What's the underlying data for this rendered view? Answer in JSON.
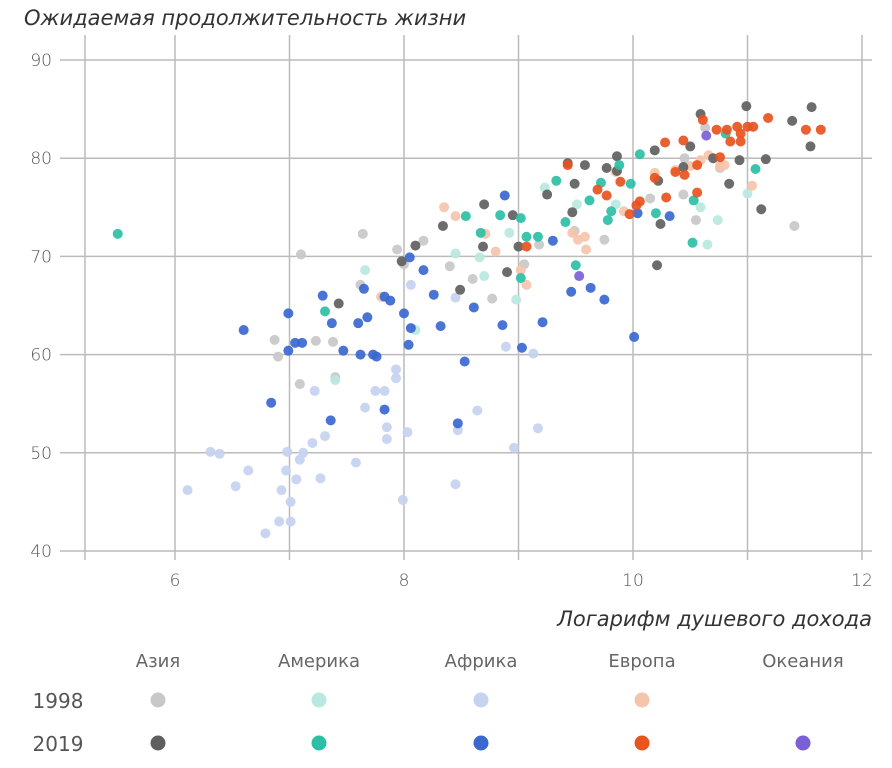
{
  "chart_data": {
    "type": "scatter",
    "title": "Ожидаемая продолжительность жизни",
    "xlabel": "Логарифм душевого дохода",
    "ylabel": "",
    "xlim": [
      5.2,
      12.1
    ],
    "ylim": [
      40,
      90
    ],
    "x_ticks": [
      6,
      8,
      10,
      12
    ],
    "x_gridlines": [
      6,
      7,
      8,
      9,
      10,
      11,
      12
    ],
    "y_ticks": [
      40,
      50,
      60,
      70,
      80,
      90
    ],
    "grid": true,
    "legend": {
      "placement": "bottom",
      "regions": [
        "Азия",
        "Америка",
        "Африка",
        "Европа",
        "Океания"
      ],
      "years": [
        "1998",
        "2019"
      ]
    },
    "series": [
      {
        "region": "Азия",
        "year": "1998",
        "color": "#c8c8c8",
        "points": [
          [
            7.64,
            72.3
          ],
          [
            7.1,
            70.2
          ],
          [
            6.87,
            61.5
          ],
          [
            6.9,
            59.8
          ],
          [
            7.23,
            61.4
          ],
          [
            7.38,
            61.3
          ],
          [
            7.62,
            67.1
          ],
          [
            7.4,
            57.7
          ],
          [
            7.09,
            57.0
          ],
          [
            7.94,
            70.7
          ],
          [
            8.17,
            71.6
          ],
          [
            8.6,
            67.7
          ],
          [
            9.05,
            69.2
          ],
          [
            9.18,
            71.2
          ],
          [
            9.49,
            72.6
          ],
          [
            9.75,
            71.7
          ],
          [
            10.15,
            75.9
          ],
          [
            10.45,
            80.0
          ],
          [
            10.55,
            73.7
          ],
          [
            10.76,
            79.0
          ],
          [
            11.41,
            73.1
          ],
          [
            10.44,
            76.3
          ],
          [
            10.63,
            83.1
          ],
          [
            8.4,
            69.0
          ],
          [
            8.0,
            69.2
          ],
          [
            8.77,
            65.7
          ]
        ]
      },
      {
        "region": "Азия",
        "year": "2019",
        "color": "#5f5f5f",
        "points": [
          [
            7.43,
            65.2
          ],
          [
            8.1,
            71.1
          ],
          [
            8.34,
            73.1
          ],
          [
            8.7,
            75.3
          ],
          [
            8.95,
            74.2
          ],
          [
            8.9,
            68.4
          ],
          [
            9.25,
            76.3
          ],
          [
            9.49,
            77.4
          ],
          [
            9.58,
            79.3
          ],
          [
            9.77,
            79.0
          ],
          [
            9.86,
            80.2
          ],
          [
            10.22,
            77.7
          ],
          [
            10.19,
            80.8
          ],
          [
            10.24,
            73.3
          ],
          [
            10.21,
            69.1
          ],
          [
            10.59,
            84.5
          ],
          [
            10.99,
            85.3
          ],
          [
            11.56,
            85.2
          ],
          [
            11.39,
            83.8
          ],
          [
            11.55,
            81.2
          ],
          [
            11.16,
            79.9
          ],
          [
            11.12,
            74.8
          ],
          [
            10.84,
            77.4
          ],
          [
            10.93,
            79.8
          ],
          [
            10.7,
            80.0
          ],
          [
            10.5,
            81.2
          ],
          [
            10.44,
            79.1
          ],
          [
            7.98,
            69.5
          ],
          [
            8.49,
            66.6
          ],
          [
            8.69,
            71.0
          ],
          [
            9.47,
            74.5
          ],
          [
            9.86,
            78.7
          ],
          [
            9.0,
            71.0
          ],
          [
            9.43,
            79.5
          ]
        ]
      },
      {
        "region": "Америка",
        "year": "1998",
        "color": "#b8e8df",
        "points": [
          [
            7.66,
            68.6
          ],
          [
            7.4,
            57.4
          ],
          [
            8.1,
            62.5
          ],
          [
            8.45,
            70.3
          ],
          [
            8.7,
            68.0
          ],
          [
            8.92,
            72.4
          ],
          [
            9.23,
            77.0
          ],
          [
            9.51,
            75.3
          ],
          [
            9.85,
            75.3
          ],
          [
            10.59,
            75.0
          ],
          [
            10.74,
            73.7
          ],
          [
            11.0,
            76.4
          ],
          [
            10.65,
            71.2
          ],
          [
            8.98,
            65.6
          ],
          [
            8.66,
            69.9
          ]
        ]
      },
      {
        "region": "Америка",
        "year": "2019",
        "color": "#2dbfa5",
        "points": [
          [
            5.5,
            72.3
          ],
          [
            7.31,
            64.4
          ],
          [
            8.54,
            74.1
          ],
          [
            8.84,
            74.2
          ],
          [
            9.02,
            73.9
          ],
          [
            9.07,
            72.0
          ],
          [
            9.02,
            67.8
          ],
          [
            9.33,
            77.7
          ],
          [
            9.41,
            73.5
          ],
          [
            9.5,
            69.1
          ],
          [
            9.62,
            75.7
          ],
          [
            9.72,
            77.5
          ],
          [
            9.88,
            79.3
          ],
          [
            10.06,
            80.4
          ],
          [
            9.98,
            77.4
          ],
          [
            9.81,
            74.6
          ],
          [
            10.2,
            74.4
          ],
          [
            10.52,
            71.4
          ],
          [
            10.53,
            75.7
          ],
          [
            10.81,
            82.5
          ],
          [
            11.07,
            78.9
          ],
          [
            9.78,
            73.7
          ],
          [
            8.67,
            72.4
          ],
          [
            9.17,
            72.0
          ]
        ]
      },
      {
        "region": "Африка",
        "year": "1998",
        "color": "#c5d3f0",
        "points": [
          [
            6.11,
            46.2
          ],
          [
            6.31,
            50.1
          ],
          [
            6.39,
            49.9
          ],
          [
            6.53,
            46.6
          ],
          [
            6.64,
            48.2
          ],
          [
            6.79,
            41.8
          ],
          [
            6.91,
            43.0
          ],
          [
            6.93,
            46.2
          ],
          [
            6.97,
            48.2
          ],
          [
            6.98,
            50.1
          ],
          [
            7.01,
            43.0
          ],
          [
            7.01,
            45.0
          ],
          [
            7.06,
            47.3
          ],
          [
            7.09,
            49.3
          ],
          [
            7.12,
            50.0
          ],
          [
            7.2,
            51.0
          ],
          [
            7.27,
            47.4
          ],
          [
            7.22,
            56.3
          ],
          [
            7.31,
            51.7
          ],
          [
            7.58,
            49.0
          ],
          [
            7.66,
            54.6
          ],
          [
            7.75,
            56.3
          ],
          [
            7.83,
            56.3
          ],
          [
            7.85,
            52.6
          ],
          [
            7.85,
            51.4
          ],
          [
            7.93,
            57.6
          ],
          [
            7.93,
            58.5
          ],
          [
            7.99,
            45.2
          ],
          [
            8.03,
            52.1
          ],
          [
            8.06,
            67.1
          ],
          [
            8.45,
            46.8
          ],
          [
            8.47,
            52.3
          ],
          [
            8.64,
            54.3
          ],
          [
            8.96,
            50.5
          ],
          [
            9.13,
            60.1
          ],
          [
            9.17,
            52.5
          ],
          [
            8.89,
            60.8
          ],
          [
            8.45,
            65.8
          ]
        ]
      },
      {
        "region": "Африка",
        "year": "2019",
        "color": "#3a67d0",
        "points": [
          [
            6.6,
            62.5
          ],
          [
            6.99,
            60.4
          ],
          [
            6.99,
            64.2
          ],
          [
            7.05,
            61.2
          ],
          [
            7.11,
            61.2
          ],
          [
            7.29,
            66.0
          ],
          [
            7.37,
            63.2
          ],
          [
            7.47,
            60.4
          ],
          [
            7.6,
            63.2
          ],
          [
            7.65,
            66.7
          ],
          [
            7.68,
            63.8
          ],
          [
            7.73,
            60.0
          ],
          [
            7.76,
            59.8
          ],
          [
            7.83,
            65.9
          ],
          [
            7.88,
            65.5
          ],
          [
            7.62,
            60.0
          ],
          [
            7.36,
            53.3
          ],
          [
            6.84,
            55.1
          ],
          [
            7.83,
            54.4
          ],
          [
            8.0,
            64.2
          ],
          [
            8.06,
            62.7
          ],
          [
            8.04,
            61.0
          ],
          [
            8.17,
            68.6
          ],
          [
            8.26,
            66.1
          ],
          [
            8.32,
            62.9
          ],
          [
            8.47,
            53.0
          ],
          [
            8.53,
            59.3
          ],
          [
            8.61,
            64.8
          ],
          [
            8.88,
            76.2
          ],
          [
            8.86,
            63.0
          ],
          [
            9.03,
            60.7
          ],
          [
            9.21,
            63.3
          ],
          [
            9.46,
            66.4
          ],
          [
            9.63,
            66.8
          ],
          [
            9.75,
            65.6
          ],
          [
            10.01,
            61.8
          ],
          [
            10.04,
            74.4
          ],
          [
            10.32,
            74.1
          ],
          [
            9.3,
            71.6
          ],
          [
            8.05,
            69.9
          ]
        ]
      },
      {
        "region": "Европа",
        "year": "1998",
        "color": "#f5c4ac",
        "points": [
          [
            8.35,
            75.0
          ],
          [
            8.45,
            74.1
          ],
          [
            8.71,
            72.3
          ],
          [
            8.8,
            70.5
          ],
          [
            9.02,
            68.6
          ],
          [
            9.07,
            67.1
          ],
          [
            9.52,
            71.7
          ],
          [
            9.58,
            72.0
          ],
          [
            9.47,
            72.4
          ],
          [
            9.92,
            74.6
          ],
          [
            10.19,
            78.5
          ],
          [
            10.37,
            78.8
          ],
          [
            10.5,
            79.2
          ],
          [
            10.59,
            79.8
          ],
          [
            10.66,
            80.3
          ],
          [
            10.76,
            79.2
          ],
          [
            10.8,
            79.3
          ],
          [
            11.04,
            77.2
          ],
          [
            7.8,
            65.9
          ],
          [
            9.59,
            70.7
          ],
          [
            9.85,
            78.6
          ]
        ]
      },
      {
        "region": "Европа",
        "year": "2019",
        "color": "#e8531e",
        "points": [
          [
            9.43,
            79.3
          ],
          [
            9.69,
            76.8
          ],
          [
            9.77,
            76.2
          ],
          [
            9.89,
            77.6
          ],
          [
            9.97,
            74.3
          ],
          [
            10.03,
            75.2
          ],
          [
            10.28,
            81.6
          ],
          [
            10.44,
            81.8
          ],
          [
            10.56,
            79.3
          ],
          [
            10.61,
            83.9
          ],
          [
            10.73,
            82.9
          ],
          [
            10.82,
            82.9
          ],
          [
            10.91,
            83.2
          ],
          [
            11.0,
            83.2
          ],
          [
            11.05,
            83.2
          ],
          [
            11.18,
            84.1
          ],
          [
            11.51,
            82.9
          ],
          [
            11.64,
            82.9
          ],
          [
            10.94,
            82.5
          ],
          [
            10.94,
            81.7
          ],
          [
            10.85,
            81.7
          ],
          [
            10.37,
            78.6
          ],
          [
            10.29,
            76.0
          ],
          [
            10.06,
            75.6
          ],
          [
            10.45,
            78.3
          ],
          [
            10.56,
            76.5
          ],
          [
            10.76,
            80.1
          ],
          [
            9.07,
            71.0
          ],
          [
            10.19,
            78.0
          ]
        ]
      },
      {
        "region": "Океания",
        "year": "2019",
        "color": "#7a5fd6",
        "points": [
          [
            9.53,
            68.0
          ],
          [
            10.64,
            82.3
          ]
        ]
      }
    ]
  }
}
